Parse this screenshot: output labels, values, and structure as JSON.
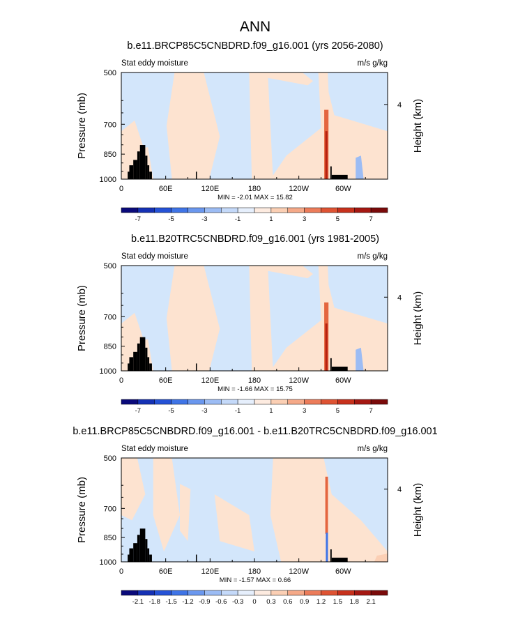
{
  "figure_title": "ANN",
  "chart_data": [
    {
      "type": "heatmap",
      "title": "b.e11.BRCP85C5CNBDRD.f09_g16.001 (yrs 2056-2080)",
      "left_label": "Stat eddy moisture",
      "right_label": "m/s g/kg",
      "ylabel": "Pressure (mb)",
      "ylabel_right": "Height (km)",
      "yticks": [
        "500",
        "700",
        "850",
        "1000"
      ],
      "ytick_values": [
        500,
        700,
        850,
        1000
      ],
      "yright_ticks": [
        "4"
      ],
      "xticks": [
        "0",
        "60E",
        "120E",
        "180",
        "120W",
        "60W"
      ],
      "xtick_values": [
        0,
        60,
        120,
        180,
        240,
        300
      ],
      "xlim": [
        0,
        360
      ],
      "ylim": [
        1000,
        500
      ],
      "stats": "MIN = -2.01  MAX = 15.82",
      "colorbar_labels": [
        "-7",
        "-5",
        "-3",
        "-1",
        "1",
        "3",
        "5",
        "7"
      ],
      "colorbar_levels": [
        -8,
        -7,
        -6,
        -5,
        -4,
        -3,
        -2,
        -1,
        0,
        1,
        2,
        3,
        4,
        5,
        6,
        7,
        8
      ],
      "colorbar_label_at": [
        1,
        3,
        5,
        7,
        9,
        11,
        13,
        15
      ]
    },
    {
      "type": "heatmap",
      "title": "b.e11.B20TRC5CNBDRD.f09_g16.001 (yrs 1981-2005)",
      "left_label": "Stat eddy moisture",
      "right_label": "m/s g/kg",
      "ylabel": "Pressure (mb)",
      "ylabel_right": "Height (km)",
      "yticks": [
        "500",
        "700",
        "850",
        "1000"
      ],
      "ytick_values": [
        500,
        700,
        850,
        1000
      ],
      "yright_ticks": [
        "4"
      ],
      "xticks": [
        "0",
        "60E",
        "120E",
        "180",
        "120W",
        "60W"
      ],
      "xtick_values": [
        0,
        60,
        120,
        180,
        240,
        300
      ],
      "xlim": [
        0,
        360
      ],
      "ylim": [
        1000,
        500
      ],
      "stats": "MIN = -1.66  MAX = 15.75",
      "colorbar_labels": [
        "-7",
        "-5",
        "-3",
        "-1",
        "1",
        "3",
        "5",
        "7"
      ],
      "colorbar_levels": [
        -8,
        -7,
        -6,
        -5,
        -4,
        -3,
        -2,
        -1,
        0,
        1,
        2,
        3,
        4,
        5,
        6,
        7,
        8
      ],
      "colorbar_label_at": [
        1,
        3,
        5,
        7,
        9,
        11,
        13,
        15
      ]
    },
    {
      "type": "heatmap",
      "title": "b.e11.BRCP85C5CNBDRD.f09_g16.001 - b.e11.B20TRC5CNBDRD.f09_g16.001",
      "left_label": "Stat eddy moisture",
      "right_label": "m/s g/kg",
      "ylabel": "Pressure (mb)",
      "ylabel_right": "Height (km)",
      "yticks": [
        "500",
        "700",
        "850",
        "1000"
      ],
      "ytick_values": [
        500,
        700,
        850,
        1000
      ],
      "yright_ticks": [
        "4"
      ],
      "xticks": [
        "0",
        "60E",
        "120E",
        "180",
        "120W",
        "60W"
      ],
      "xtick_values": [
        0,
        60,
        120,
        180,
        240,
        300
      ],
      "xlim": [
        0,
        360
      ],
      "ylim": [
        1000,
        500
      ],
      "stats": "MIN = -1.57  MAX =  0.66",
      "colorbar_labels": [
        "-2.1",
        "-1.8",
        "-1.5",
        "-1.2",
        "-0.9",
        "-0.6",
        "-0.3",
        "0",
        "0.3",
        "0.6",
        "0.9",
        "1.2",
        "1.5",
        "1.8",
        "2.1"
      ],
      "colorbar_levels": [
        -2.4,
        -2.1,
        -1.8,
        -1.5,
        -1.2,
        -0.9,
        -0.6,
        -0.3,
        0,
        0.3,
        0.6,
        0.9,
        1.2,
        1.5,
        1.8,
        2.1,
        2.4
      ],
      "colorbar_label_at": [
        1,
        2,
        3,
        4,
        5,
        6,
        7,
        8,
        9,
        10,
        11,
        12,
        13,
        14,
        15
      ]
    }
  ],
  "colors": {
    "background_field": "#d3e6fb",
    "positive_light": "#fde3d0",
    "peak_dark": "#b82010",
    "peak_mid": "#e4653f",
    "terrain": "#000000",
    "colorbar": [
      "#0a0a7a",
      "#1531b4",
      "#2552d6",
      "#3f74e6",
      "#6a97ee",
      "#9cbcf4",
      "#c4d9f9",
      "#e6effc",
      "#fdebe0",
      "#fbcfb4",
      "#f5a988",
      "#ec7c5a",
      "#de5333",
      "#c7311c",
      "#a51812",
      "#7a0a0a"
    ]
  }
}
